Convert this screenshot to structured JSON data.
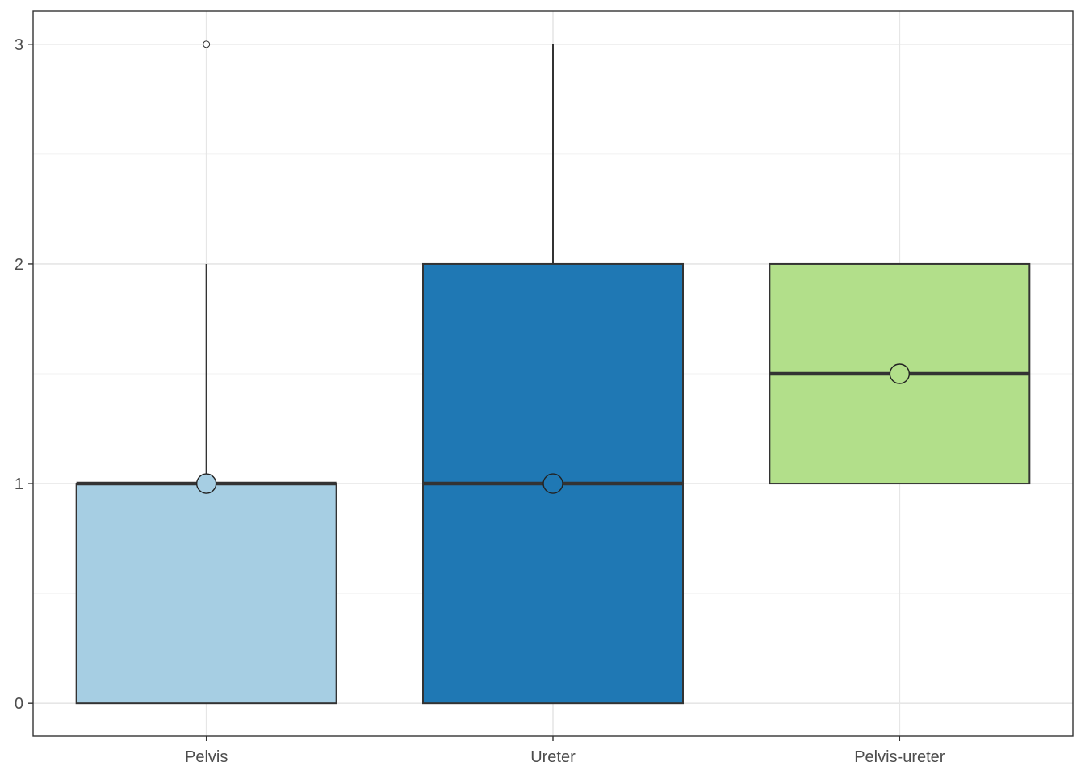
{
  "chart_data": {
    "type": "boxplot",
    "title": "",
    "xlabel": "",
    "ylabel": "",
    "ylim": [
      -0.15,
      3.15
    ],
    "y_ticks": [
      0,
      1,
      2,
      3
    ],
    "y_tick_labels": [
      "0",
      "1",
      "2",
      "3"
    ],
    "y_minor_ticks": [
      0.5,
      1.5,
      2.5
    ],
    "grid": true,
    "legend": "none",
    "categories": [
      "Pelvis",
      "Ureter",
      "Pelvis-ureter"
    ],
    "boxes": [
      {
        "category": "Pelvis",
        "whisker_low": 0,
        "q1": 0,
        "median": 1,
        "q3": 1,
        "whisker_high": 2,
        "mean": 1,
        "outliers": [
          3
        ],
        "fill": "#a6cee3"
      },
      {
        "category": "Ureter",
        "whisker_low": 0,
        "q1": 0,
        "median": 1,
        "q3": 2,
        "whisker_high": 3,
        "mean": 1,
        "outliers": [],
        "fill": "#1f78b4"
      },
      {
        "category": "Pelvis-ureter",
        "whisker_low": 1,
        "q1": 1,
        "median": 1.5,
        "q3": 2,
        "whisker_high": 2,
        "mean": 1.5,
        "outliers": [],
        "fill": "#b2df8a"
      }
    ]
  }
}
